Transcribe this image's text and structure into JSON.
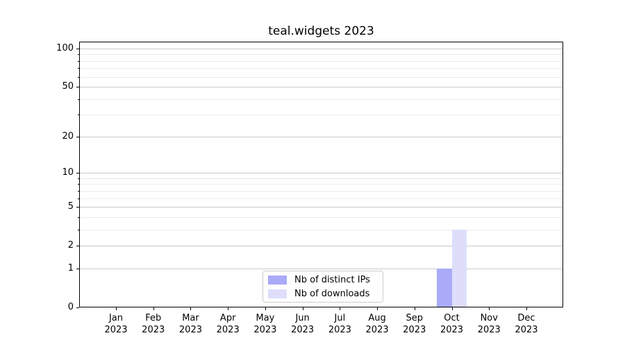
{
  "chart_data": {
    "type": "bar",
    "title": "teal.widgets 2023",
    "x_tick_year": "2023",
    "categories": [
      "Jan",
      "Feb",
      "Mar",
      "Apr",
      "May",
      "Jun",
      "Jul",
      "Aug",
      "Sep",
      "Oct",
      "Nov",
      "Dec"
    ],
    "series": [
      {
        "name": "Nb of distinct IPs",
        "color": "#aaaaf8",
        "values": [
          0,
          0,
          0,
          0,
          0,
          0,
          0,
          0,
          0,
          1,
          0,
          0
        ]
      },
      {
        "name": "Nb of downloads",
        "color": "#dedefb",
        "values": [
          0,
          0,
          0,
          0,
          0,
          0,
          0,
          0,
          0,
          3,
          0,
          0
        ]
      }
    ],
    "xlabel": "",
    "ylabel": "",
    "y_scale": "log10(value+1)",
    "ylim": [
      0,
      113
    ],
    "y_major_ticks": [
      0,
      1,
      2,
      5,
      10,
      20,
      50,
      100
    ],
    "y_minor_ticks": [
      3,
      4,
      6,
      7,
      8,
      9,
      30,
      40,
      60,
      70,
      80,
      90
    ],
    "grid": "horizontal-only",
    "legend_position": "lower-center",
    "colors": {
      "major_grid": "#c9c9c9",
      "minor_grid": "#ebebeb",
      "axis": "#000000",
      "legend_border": "#cccccc",
      "background": "#ffffff"
    }
  }
}
